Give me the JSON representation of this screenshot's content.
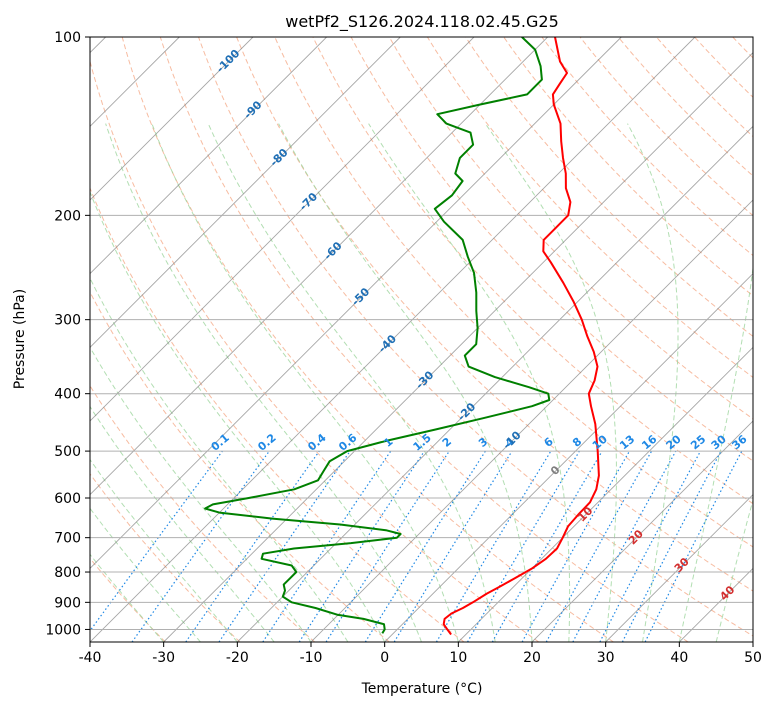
{
  "chart_data": {
    "type": "line",
    "title": "wetPf2_S126.2024.118.02.45.G25",
    "xlabel": "Temperature (°C)",
    "ylabel": "Pressure (hPa)",
    "xlim": [
      -40,
      50
    ],
    "ylim": [
      1050,
      100
    ],
    "y_scale": "log",
    "grid": true,
    "x_ticks": [
      -40,
      -30,
      -20,
      -10,
      0,
      10,
      20,
      30,
      40,
      50
    ],
    "y_ticks": [
      1000,
      900,
      800,
      700,
      600,
      500,
      400,
      300,
      200,
      100
    ],
    "colors": {
      "temperature": "#ff0000",
      "dewpoint": "#008000",
      "isotherms": "#808080",
      "grid": "#b0b0b0",
      "dry_adiabats": "#f4a582",
      "moist_adiabats": "#9fd69f",
      "mixing_ratio": "#1e88e5",
      "label_blue": "#1f6fb5",
      "label_red": "#d32f2f"
    },
    "series": [
      {
        "name": "temperature",
        "points": [
          {
            "p": 1020,
            "t": 8.0
          },
          {
            "p": 1000,
            "t": 6.8
          },
          {
            "p": 980,
            "t": 5.6
          },
          {
            "p": 960,
            "t": 5.0
          },
          {
            "p": 940,
            "t": 5.2
          },
          {
            "p": 920,
            "t": 6.0
          },
          {
            "p": 900,
            "t": 6.6
          },
          {
            "p": 870,
            "t": 7.3
          },
          {
            "p": 850,
            "t": 8.0
          },
          {
            "p": 820,
            "t": 9.0
          },
          {
            "p": 790,
            "t": 10.0
          },
          {
            "p": 760,
            "t": 10.6
          },
          {
            "p": 730,
            "t": 10.7
          },
          {
            "p": 700,
            "t": 10.0
          },
          {
            "p": 670,
            "t": 9.2
          },
          {
            "p": 640,
            "t": 9.0
          },
          {
            "p": 610,
            "t": 8.9
          },
          {
            "p": 580,
            "t": 8.0
          },
          {
            "p": 550,
            "t": 6.5
          },
          {
            "p": 500,
            "t": 3.0
          },
          {
            "p": 450,
            "t": -1.0
          },
          {
            "p": 420,
            "t": -4.0
          },
          {
            "p": 400,
            "t": -6.0
          },
          {
            "p": 380,
            "t": -7.0
          },
          {
            "p": 360,
            "t": -8.5
          },
          {
            "p": 340,
            "t": -11.0
          },
          {
            "p": 320,
            "t": -14.0
          },
          {
            "p": 300,
            "t": -17.0
          },
          {
            "p": 280,
            "t": -20.5
          },
          {
            "p": 260,
            "t": -24.5
          },
          {
            "p": 240,
            "t": -29.0
          },
          {
            "p": 230,
            "t": -31.5
          },
          {
            "p": 220,
            "t": -33.0
          },
          {
            "p": 210,
            "t": -33.0
          },
          {
            "p": 200,
            "t": -33.0
          },
          {
            "p": 190,
            "t": -34.5
          },
          {
            "p": 180,
            "t": -37.0
          },
          {
            "p": 170,
            "t": -39.0
          },
          {
            "p": 160,
            "t": -41.5
          },
          {
            "p": 150,
            "t": -44.0
          },
          {
            "p": 140,
            "t": -46.5
          },
          {
            "p": 130,
            "t": -50.0
          },
          {
            "p": 125,
            "t": -51.5
          },
          {
            "p": 120,
            "t": -52.0
          },
          {
            "p": 115,
            "t": -52.5
          },
          {
            "p": 110,
            "t": -55.0
          },
          {
            "p": 100,
            "t": -59.0
          }
        ]
      },
      {
        "name": "dewpoint",
        "points": [
          {
            "p": 1015,
            "t": -1.5
          },
          {
            "p": 1000,
            "t": -1.7
          },
          {
            "p": 980,
            "t": -2.5
          },
          {
            "p": 960,
            "t": -6.0
          },
          {
            "p": 945,
            "t": -10.0
          },
          {
            "p": 920,
            "t": -14.0
          },
          {
            "p": 900,
            "t": -18.0
          },
          {
            "p": 880,
            "t": -20.0
          },
          {
            "p": 860,
            "t": -20.5
          },
          {
            "p": 840,
            "t": -21.5
          },
          {
            "p": 820,
            "t": -21.5
          },
          {
            "p": 800,
            "t": -21.5
          },
          {
            "p": 780,
            "t": -23.0
          },
          {
            "p": 760,
            "t": -28.0
          },
          {
            "p": 745,
            "t": -28.5
          },
          {
            "p": 730,
            "t": -25.0
          },
          {
            "p": 715,
            "t": -18.0
          },
          {
            "p": 700,
            "t": -12.5
          },
          {
            "p": 690,
            "t": -12.5
          },
          {
            "p": 680,
            "t": -15.0
          },
          {
            "p": 665,
            "t": -22.0
          },
          {
            "p": 650,
            "t": -32.0
          },
          {
            "p": 635,
            "t": -40.0
          },
          {
            "p": 625,
            "t": -42.5
          },
          {
            "p": 615,
            "t": -42.0
          },
          {
            "p": 600,
            "t": -38.0
          },
          {
            "p": 580,
            "t": -33.0
          },
          {
            "p": 560,
            "t": -31.0
          },
          {
            "p": 540,
            "t": -31.5
          },
          {
            "p": 520,
            "t": -32.0
          },
          {
            "p": 500,
            "t": -31.0
          },
          {
            "p": 480,
            "t": -27.0
          },
          {
            "p": 460,
            "t": -22.0
          },
          {
            "p": 440,
            "t": -17.0
          },
          {
            "p": 420,
            "t": -12.0
          },
          {
            "p": 410,
            "t": -10.5
          },
          {
            "p": 400,
            "t": -11.5
          },
          {
            "p": 390,
            "t": -15.0
          },
          {
            "p": 375,
            "t": -21.0
          },
          {
            "p": 360,
            "t": -26.0
          },
          {
            "p": 345,
            "t": -28.0
          },
          {
            "p": 330,
            "t": -28.0
          },
          {
            "p": 310,
            "t": -30.0
          },
          {
            "p": 290,
            "t": -32.5
          },
          {
            "p": 270,
            "t": -35.0
          },
          {
            "p": 250,
            "t": -38.0
          },
          {
            "p": 235,
            "t": -41.0
          },
          {
            "p": 220,
            "t": -44.0
          },
          {
            "p": 205,
            "t": -49.0
          },
          {
            "p": 195,
            "t": -52.0
          },
          {
            "p": 185,
            "t": -51.5
          },
          {
            "p": 175,
            "t": -52.0
          },
          {
            "p": 170,
            "t": -54.0
          },
          {
            "p": 160,
            "t": -55.5
          },
          {
            "p": 152,
            "t": -55.5
          },
          {
            "p": 145,
            "t": -57.5
          },
          {
            "p": 140,
            "t": -62.0
          },
          {
            "p": 135,
            "t": -64.5
          },
          {
            "p": 130,
            "t": -60.0
          },
          {
            "p": 125,
            "t": -55.0
          },
          {
            "p": 118,
            "t": -55.0
          },
          {
            "p": 112,
            "t": -57.0
          },
          {
            "p": 105,
            "t": -60.0
          },
          {
            "p": 100,
            "t": -63.5
          }
        ]
      }
    ],
    "isotherm_labels": [
      {
        "t": -100,
        "p": 110
      },
      {
        "t": -90,
        "p": 133
      },
      {
        "t": -80,
        "p": 160
      },
      {
        "t": -70,
        "p": 190
      },
      {
        "t": -60,
        "p": 230
      },
      {
        "t": -50,
        "p": 275
      },
      {
        "t": -40,
        "p": 330
      },
      {
        "t": -30,
        "p": 380
      },
      {
        "t": -20,
        "p": 430
      },
      {
        "t": -10,
        "p": 480
      }
    ],
    "isotherm_labels_red": [
      {
        "t": 10,
        "p": 640
      },
      {
        "t": 20,
        "p": 700
      },
      {
        "t": 30,
        "p": 780
      },
      {
        "t": 40,
        "p": 870
      }
    ],
    "isotherm_label_zero": {
      "t": 0,
      "p": 540
    },
    "mixing_ratio_lines": [
      "0.1",
      "0.2",
      "0.4",
      "0.6",
      "1",
      "1.5",
      "2",
      "3",
      "4",
      "6",
      "8",
      "10",
      "13",
      "16",
      "20",
      "25",
      "30",
      "36"
    ],
    "mixing_ratio_label_pressure": 500
  }
}
